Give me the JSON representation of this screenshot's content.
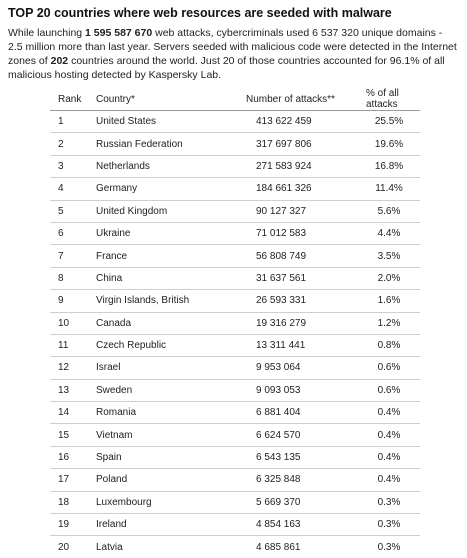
{
  "title": "TOP 20 countries where web resources are seeded with malware",
  "intro": {
    "p1": "While launching ",
    "b1": "1 595 587 670",
    "p2": " web attacks, cybercriminals used 6 537 320 unique domains - 2.5 million more than last year. Servers seeded with malicious code were detected in the Internet zones of ",
    "b2": "202",
    "p3": " countries around the world. Just 20 of those countries accounted for 96.1% of all malicious hosting detected by Kaspersky Lab."
  },
  "table": {
    "headers": {
      "rank": "Rank",
      "country": "Country*",
      "attacks": "Number of attacks**",
      "share": "% of all attacks"
    },
    "rows": [
      {
        "rank": "1",
        "country": "United States",
        "attacks": "413 622 459",
        "share": "25.5%"
      },
      {
        "rank": "2",
        "country": "Russian Federation",
        "attacks": "317 697 806",
        "share": "19.6%"
      },
      {
        "rank": "3",
        "country": "Netherlands",
        "attacks": "271 583 924",
        "share": "16.8%"
      },
      {
        "rank": "4",
        "country": "Germany",
        "attacks": "184 661 326",
        "share": "11.4%"
      },
      {
        "rank": "5",
        "country": "United Kingdom",
        "attacks": "90 127 327",
        "share": "5.6%"
      },
      {
        "rank": "6",
        "country": "Ukraine",
        "attacks": "71 012 583",
        "share": "4.4%"
      },
      {
        "rank": "7",
        "country": "France",
        "attacks": "56 808 749",
        "share": "3.5%"
      },
      {
        "rank": "8",
        "country": "China",
        "attacks": "31 637 561",
        "share": "2.0%"
      },
      {
        "rank": "9",
        "country": "Virgin Islands, British",
        "attacks": "26 593 331",
        "share": "1.6%"
      },
      {
        "rank": "10",
        "country": "Canada",
        "attacks": "19 316 279",
        "share": "1.2%"
      },
      {
        "rank": "11",
        "country": "Czech Republic",
        "attacks": "13 311 441",
        "share": "0.8%"
      },
      {
        "rank": "12",
        "country": "Israel",
        "attacks": "9 953 064",
        "share": "0.6%"
      },
      {
        "rank": "13",
        "country": "Sweden",
        "attacks": "9 093 053",
        "share": "0.6%"
      },
      {
        "rank": "14",
        "country": "Romania",
        "attacks": "6 881 404",
        "share": "0.4%"
      },
      {
        "rank": "15",
        "country": "Vietnam",
        "attacks": "6 624 570",
        "share": "0.4%"
      },
      {
        "rank": "16",
        "country": "Spain",
        "attacks": "6 543 135",
        "share": "0.4%"
      },
      {
        "rank": "17",
        "country": "Poland",
        "attacks": "6 325 848",
        "share": "0.4%"
      },
      {
        "rank": "18",
        "country": "Luxembourg",
        "attacks": "5 669 370",
        "share": "0.3%"
      },
      {
        "rank": "19",
        "country": "Ireland",
        "attacks": "4 854 163",
        "share": "0.3%"
      },
      {
        "rank": "20",
        "country": "Latvia",
        "attacks": "4 685 861",
        "share": "0.3%"
      }
    ]
  }
}
